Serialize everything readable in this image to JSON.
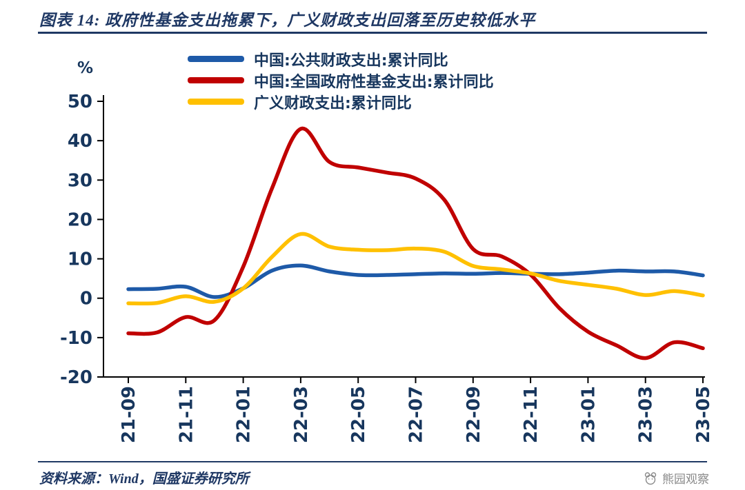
{
  "title": "图表 14:  政府性基金支出拖累下，广义财政支出回落至历史较低水平",
  "footer": {
    "source": "资料来源：Wind，国盛证券研究所",
    "watermark": "熊园观察"
  },
  "colors": {
    "navy": "#1F3864",
    "tick_text": "#17365D",
    "axis": "#000000",
    "watermark_gray": "#8a8a8a"
  },
  "chart_data": {
    "type": "line",
    "unit_label": "%",
    "title": "",
    "xlabel": "",
    "ylabel": "%",
    "ylim": [
      -20,
      50
    ],
    "yticks": [
      50,
      40,
      30,
      20,
      10,
      0,
      -10,
      -20
    ],
    "grid": false,
    "legend_position": "top",
    "x": [
      "21-09",
      "21-10",
      "21-11",
      "21-12",
      "22-01",
      "22-02",
      "22-03",
      "22-04",
      "22-05",
      "22-06",
      "22-07",
      "22-08",
      "22-09",
      "22-10",
      "22-11",
      "22-12",
      "23-01",
      "23-02",
      "23-03",
      "23-04",
      "23-05"
    ],
    "x_tick_step": 2,
    "series": [
      {
        "name": "中国:公共财政支出:累计同比",
        "color": "#1E5AA8",
        "values": [
          2.3,
          2.4,
          2.9,
          0.3,
          2.5,
          7.0,
          8.3,
          6.8,
          5.9,
          5.9,
          6.1,
          6.3,
          6.2,
          6.4,
          6.2,
          6.1,
          6.5,
          7.0,
          6.8,
          6.8,
          5.8
        ]
      },
      {
        "name": "中国:全国政府性基金支出:累计同比",
        "color": "#C00000",
        "values": [
          -8.9,
          -8.7,
          -4.8,
          -5.6,
          8.0,
          27.9,
          43.0,
          34.6,
          33.2,
          31.9,
          30.4,
          25.0,
          12.5,
          10.6,
          6.0,
          -2.5,
          -8.5,
          -12.0,
          -15.2,
          -11.2,
          -12.7
        ]
      },
      {
        "name": "广义财政支出:累计同比",
        "color": "#FFC000",
        "values": [
          -1.3,
          -1.2,
          0.5,
          -0.9,
          2.5,
          10.5,
          16.3,
          13.1,
          12.3,
          12.2,
          12.6,
          11.8,
          8.2,
          7.3,
          6.3,
          4.4,
          3.4,
          2.4,
          0.8,
          1.8,
          0.7
        ]
      }
    ]
  }
}
